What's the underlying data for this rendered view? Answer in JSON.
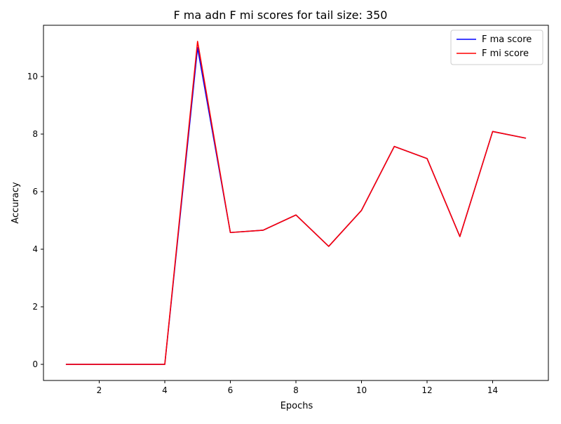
{
  "chart_data": {
    "type": "line",
    "title": "F ma adn F mi scores for tail size: 350",
    "xlabel": "Epochs",
    "ylabel": "Accuracy",
    "xlim": [
      0.3,
      15.7
    ],
    "ylim": [
      -0.56,
      11.78
    ],
    "xticks": [
      2,
      4,
      6,
      8,
      10,
      12,
      14
    ],
    "yticks": [
      0,
      2,
      4,
      6,
      8,
      10
    ],
    "x": [
      1,
      2,
      3,
      4,
      5,
      6,
      7,
      8,
      9,
      10,
      11,
      12,
      13,
      14,
      15
    ],
    "series": [
      {
        "name": "F ma score",
        "color": "#0000ff",
        "values": [
          0,
          0,
          0,
          0,
          11.0,
          4.58,
          4.66,
          5.19,
          4.1,
          5.35,
          7.57,
          7.15,
          4.44,
          8.09,
          7.86
        ]
      },
      {
        "name": "F mi score",
        "color": "#ff0000",
        "values": [
          0,
          0,
          0,
          0,
          11.22,
          4.58,
          4.66,
          5.19,
          4.1,
          5.35,
          7.57,
          7.15,
          4.44,
          8.09,
          7.86
        ]
      }
    ],
    "grid": false,
    "legend_position": "top-right"
  }
}
